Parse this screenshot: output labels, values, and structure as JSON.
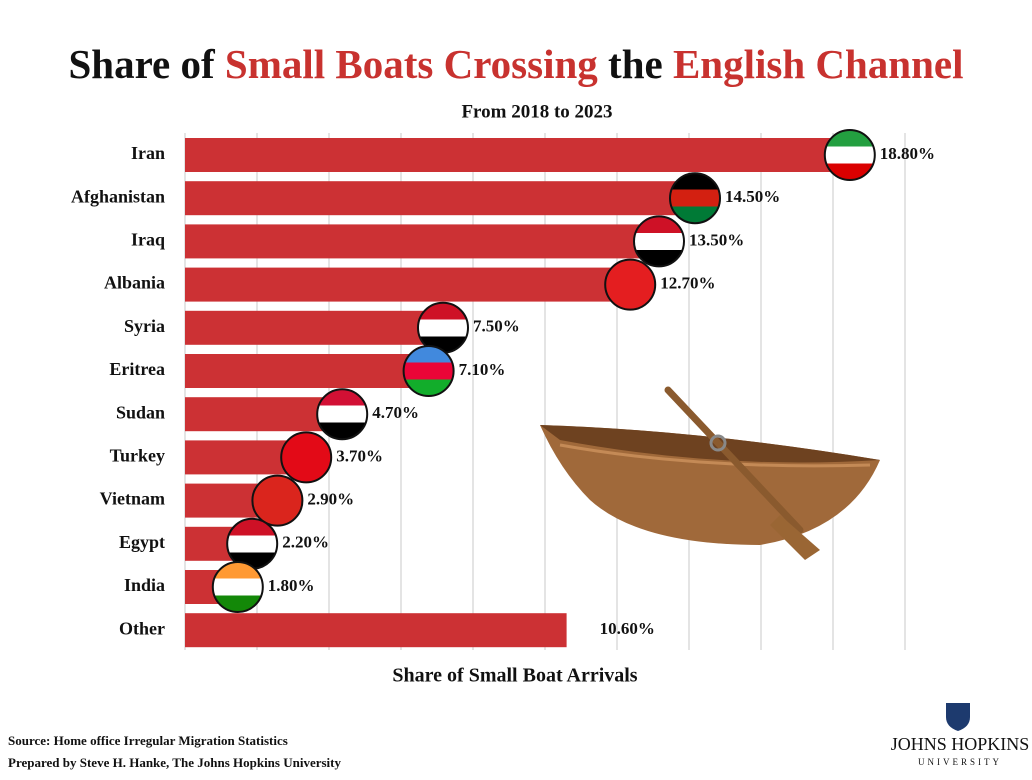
{
  "chart_data": {
    "type": "barh",
    "title_parts": [
      "Share of",
      "Small Boats Crossing",
      "the",
      "English Channel"
    ],
    "subtitle": "From 2018 to 2023",
    "x_label": "Share of Small Boat Arrivals",
    "categories": [
      "Iran",
      "Afghanistan",
      "Iraq",
      "Albania",
      "Syria",
      "Eritrea",
      "Sudan",
      "Turkey",
      "Vietnam",
      "Egypt",
      "India",
      "Other"
    ],
    "values": [
      18.8,
      14.5,
      13.5,
      12.7,
      7.5,
      7.1,
      4.7,
      3.7,
      2.9,
      2.2,
      1.8,
      10.6
    ],
    "value_labels": [
      "18.80%",
      "14.50%",
      "13.50%",
      "12.70%",
      "7.50%",
      "7.10%",
      "4.70%",
      "3.70%",
      "2.90%",
      "2.20%",
      "1.80%",
      "10.60%"
    ],
    "color": "#cc3134",
    "xlim": [
      0,
      20
    ],
    "xticks": [
      0,
      2,
      4,
      6,
      8,
      10,
      12,
      14,
      16,
      18,
      20
    ],
    "grid": true
  },
  "footer": {
    "source": "Source: Home office Irregular Migration Statistics",
    "prepared": "Prepared by Steve H. Hanke, The Johns Hopkins University",
    "logo_name": "JOHNS HOPKINS",
    "logo_sub": "UNIVERSITY"
  }
}
